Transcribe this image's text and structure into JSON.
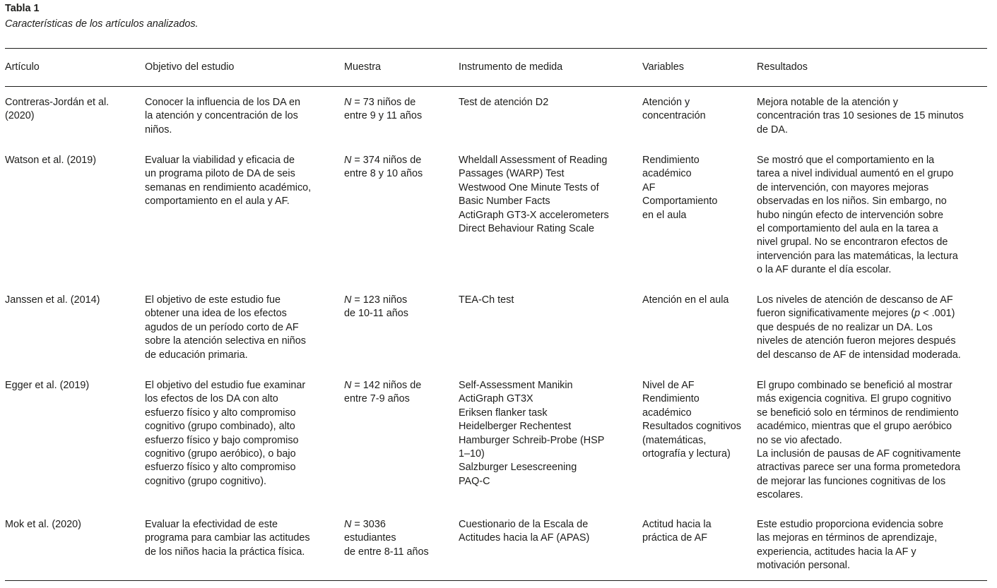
{
  "table": {
    "title": "Tabla 1",
    "caption": "Características de los artículos analizados.",
    "headers": [
      "Artículo",
      "Objetivo del estudio",
      "Muestra",
      "Instrumento de medida",
      "Variables",
      "Resultados"
    ],
    "rows": [
      [
        [
          "Contreras-Jordán et al.",
          "(2020)"
        ],
        [
          "Conocer la influencia de los DA en",
          "la atención y concentración de los",
          "niños."
        ],
        [
          "N = 73 niños de",
          "entre 9 y 11 años"
        ],
        [
          "Test de atención D2"
        ],
        [
          "Atención y",
          "concentración"
        ],
        [
          "Mejora notable de la atención y",
          "concentración tras 10 sesiones de 15 minutos",
          "de DA."
        ]
      ],
      [
        [
          "Watson et al. (2019)"
        ],
        [
          "Evaluar la viabilidad y eficacia de",
          "un programa piloto de DA de seis",
          "semanas en rendimiento académico,",
          "comportamiento en el aula y AF."
        ],
        [
          "N = 374 niños de",
          "entre 8 y 10 años"
        ],
        [
          "Wheldall Assessment of Reading",
          "Passages (WARP) Test",
          "Westwood One Minute Tests of",
          "Basic Number Facts",
          "ActiGraph GT3-X accelerometers",
          "Direct Behaviour Rating Scale"
        ],
        [
          "Rendimiento",
          "académico",
          "AF",
          "Comportamiento",
          "en el aula"
        ],
        [
          "Se mostró que el comportamiento en la",
          "tarea a nivel individual aumentó en el grupo",
          "de intervención, con mayores mejoras",
          "observadas en los niños. Sin embargo, no",
          "hubo ningún efecto de intervención sobre",
          "el comportamiento del aula en la tarea a",
          "nivel grupal. No se encontraron efectos de",
          "intervención para las matemáticas, la lectura",
          "o la AF durante el día escolar."
        ]
      ],
      [
        [
          "Janssen et al. (2014)"
        ],
        [
          "El objetivo de este estudio fue",
          "obtener una idea de los efectos",
          "agudos de un período corto de AF",
          "sobre la atención selectiva en niños",
          "de educación primaria."
        ],
        [
          "N = 123 niños",
          "de 10-11 años"
        ],
        [
          "TEA-Ch test"
        ],
        [
          "Atención en el aula"
        ],
        [
          "Los niveles de atención de descanso de AF",
          "fueron significativamente mejores (p < .001)",
          "que después de no realizar un DA. Los",
          "niveles de atención fueron mejores después",
          "del descanso de AF de intensidad moderada."
        ]
      ],
      [
        [
          "Egger et al. (2019)"
        ],
        [
          "El objetivo del estudio fue examinar",
          "los efectos de los DA con alto",
          "esfuerzo físico y alto compromiso",
          "cognitivo (grupo combinado), alto",
          "esfuerzo físico y bajo compromiso",
          "cognitivo (grupo aeróbico), o bajo",
          "esfuerzo físico y alto compromiso",
          "cognitivo (grupo cognitivo)."
        ],
        [
          "N = 142 niños de",
          "entre 7-9 años"
        ],
        [
          "Self-Assessment Manikin",
          "ActiGraph GT3X",
          "Eriksen flanker task",
          "Heidelberger Rechentest",
          "Hamburger Schreib-Probe (HSP",
          "1–10)",
          "Salzburger Lesescreening",
          "PAQ-C"
        ],
        [
          "Nivel de AF",
          "Rendimiento",
          "académico",
          "Resultados cognitivos",
          "(matemáticas,",
          "ortografía y lectura)"
        ],
        [
          "El grupo combinado se benefició al mostrar",
          "más exigencia cognitiva. El grupo cognitivo",
          "se benefició solo en términos de rendimiento",
          "académico, mientras que el grupo aeróbico",
          "no se vio afectado.",
          "La inclusión de pausas de AF cognitivamente",
          "atractivas parece ser una forma prometedora",
          "de mejorar las funciones cognitivas de los",
          "escolares."
        ]
      ],
      [
        [
          "Mok et al. (2020)"
        ],
        [
          "Evaluar la efectividad de este",
          "programa para cambiar las actitudes",
          "de los niños hacia la práctica física."
        ],
        [
          "N = 3036",
          "estudiantes",
          "de entre 8-11 años"
        ],
        [
          "Cuestionario de la Escala de",
          "Actitudes hacia la AF (APAS)"
        ],
        [
          "Actitud hacia la",
          "práctica de AF"
        ],
        [
          "Este estudio proporciona evidencia sobre",
          "las mejoras en términos de aprendizaje,",
          "experiencia, actitudes hacia la AF y",
          "motivación personal."
        ]
      ]
    ]
  }
}
